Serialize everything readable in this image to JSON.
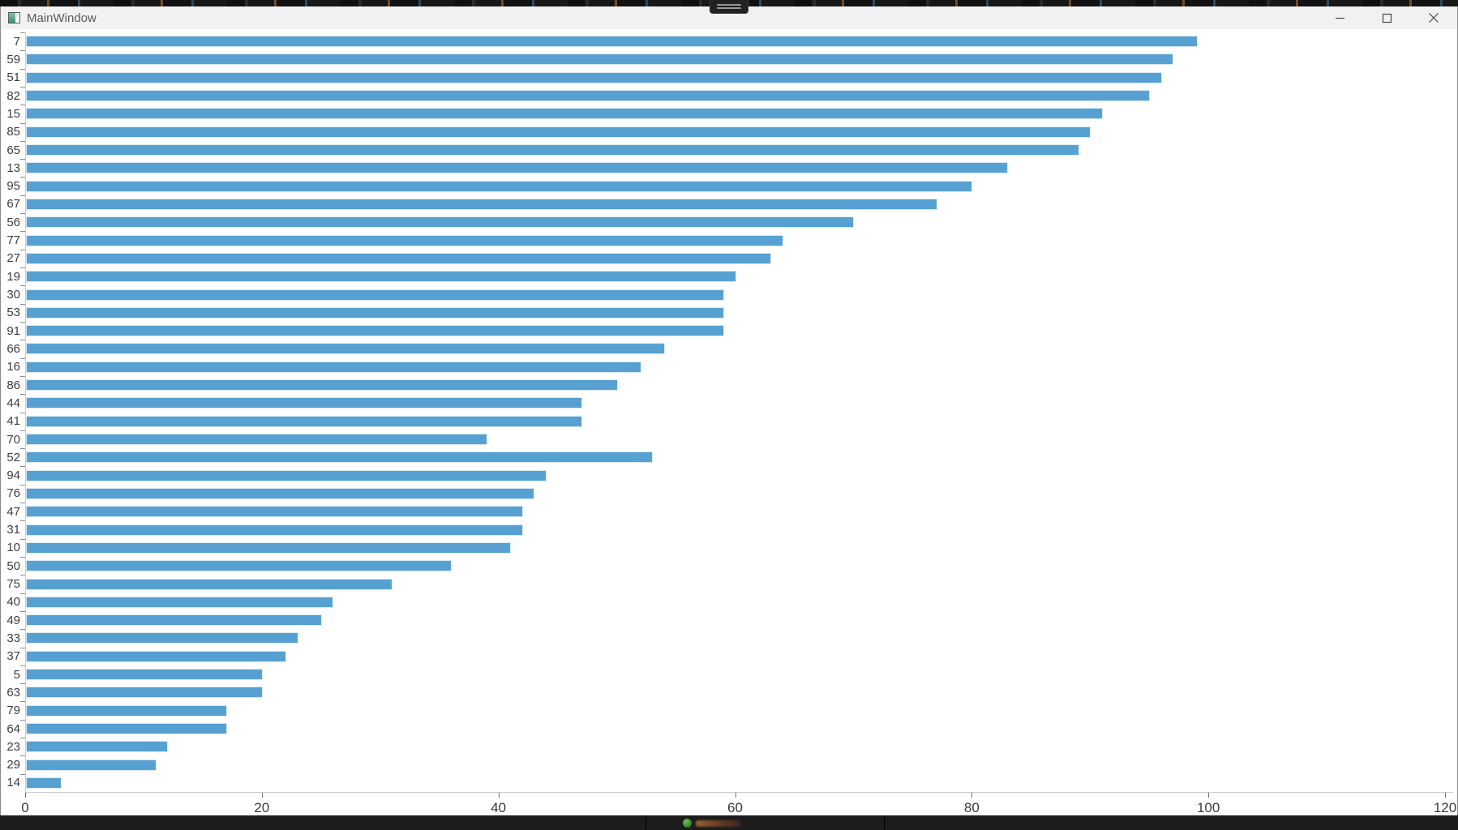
{
  "window": {
    "title": "MainWindow",
    "controls": [
      {
        "name": "minimize",
        "icon": "minimize-icon"
      },
      {
        "name": "maximize",
        "icon": "maximize-icon"
      },
      {
        "name": "close",
        "icon": "close-icon"
      }
    ]
  },
  "background": {
    "top_strip": "browser-ui-sliver",
    "screenshare_handle_icon": "grab-handle-icon",
    "taskbar_icon": "green-app-icon"
  },
  "chart_data": {
    "type": "bar",
    "orientation": "horizontal",
    "title": "",
    "xlabel": "",
    "ylabel": "",
    "grid": false,
    "legend": null,
    "xlim": [
      0,
      120
    ],
    "x_ticks": [
      0,
      20,
      40,
      60,
      80,
      100,
      120
    ],
    "x_tick_labels": [
      "0",
      "20",
      "40",
      "60",
      "80",
      "100",
      "120"
    ],
    "bar_color": "#57a0d2",
    "bar_edge_color": "#d9ebf7",
    "categories": [
      "7",
      "59",
      "51",
      "82",
      "15",
      "85",
      "65",
      "13",
      "95",
      "67",
      "56",
      "77",
      "27",
      "19",
      "30",
      "53",
      "91",
      "66",
      "16",
      "86",
      "44",
      "41",
      "70",
      "52",
      "94",
      "76",
      "47",
      "31",
      "10",
      "50",
      "75",
      "40",
      "49",
      "33",
      "37",
      "5",
      "63",
      "79",
      "64",
      "23",
      "29",
      "14"
    ],
    "values": [
      99,
      97,
      96,
      95,
      91,
      90,
      89,
      83,
      80,
      77,
      70,
      64,
      63,
      60,
      59,
      59,
      59,
      54,
      52,
      50,
      47,
      47,
      39,
      53,
      44,
      43,
      42,
      42,
      41,
      36,
      31,
      26,
      25,
      23,
      22,
      20,
      20,
      17,
      17,
      12,
      11,
      3
    ]
  }
}
